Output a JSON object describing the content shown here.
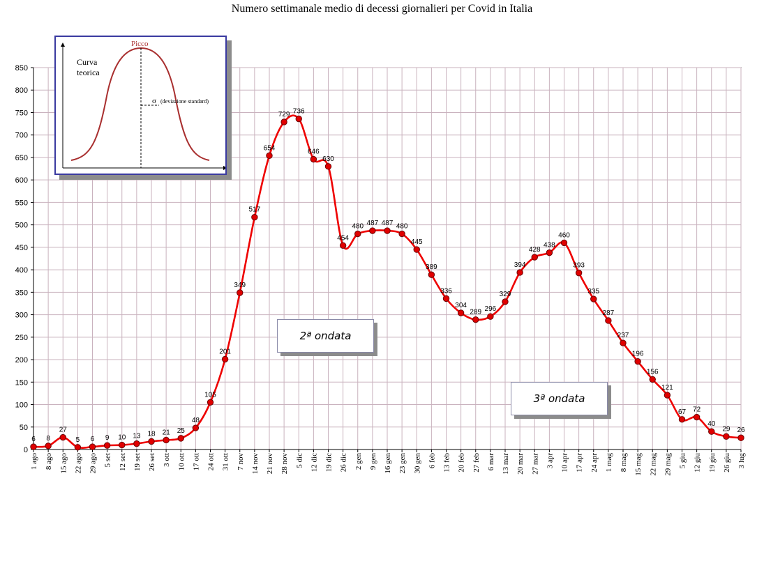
{
  "title": "Numero settimanale medio di decessi giornalieri per Covid in Italia",
  "chart_data": {
    "type": "line",
    "title": "Numero settimanale medio di decessi giornalieri per Covid in Italia",
    "xlabel": "",
    "ylabel": "",
    "ylim": [
      0,
      850
    ],
    "yticks": [
      0,
      50,
      100,
      150,
      200,
      250,
      300,
      350,
      400,
      450,
      500,
      550,
      600,
      650,
      700,
      750,
      800,
      850
    ],
    "grid": true,
    "line_color": "#ee0000",
    "marker_color": "#e00000",
    "categories": [
      "1 ago",
      "8 ago",
      "15 ago",
      "22 ago",
      "29 ago",
      "5 set",
      "12 set",
      "19 set",
      "26 set",
      "3 ott",
      "10 ott",
      "17 ott",
      "24 ott",
      "31 ott",
      "7 nov",
      "14 nov",
      "21 nov",
      "28 nov",
      "5 dic",
      "12 dic",
      "19 dic",
      "26 dic",
      "2 gen",
      "9 gen",
      "16 gen",
      "23 gen",
      "30 gen",
      "6 feb",
      "13 feb",
      "20 feb",
      "27 feb",
      "6 mar",
      "13 mar",
      "20 mar",
      "27 mar",
      "3 apr",
      "10 apr",
      "17 apr",
      "24 apr",
      "1 mag",
      "8 mag",
      "15 mag",
      "22 mag",
      "29 mag",
      "5 giu",
      "12 giu",
      "19 giu",
      "26 giu",
      "3 lug"
    ],
    "values": [
      6,
      8,
      27,
      5,
      6,
      9,
      10,
      13,
      18,
      21,
      25,
      48,
      105,
      201,
      349,
      517,
      654,
      729,
      736,
      646,
      630,
      454,
      480,
      487,
      487,
      480,
      445,
      389,
      336,
      304,
      289,
      296,
      329,
      394,
      428,
      438,
      460,
      393,
      335,
      287,
      237,
      196,
      156,
      121,
      67,
      72,
      40,
      29,
      26
    ],
    "annotations": [
      "2ª ondata",
      "3ª ondata"
    ]
  },
  "inset": {
    "peak_label": "Picco",
    "curve_label_line1": "Curva",
    "curve_label_line2": "teorica",
    "sigma_symbol": "σ",
    "sigma_label": "(deviazione standard)"
  },
  "wave2_label": "2ª ondata",
  "wave3_label": "3ª ondata"
}
